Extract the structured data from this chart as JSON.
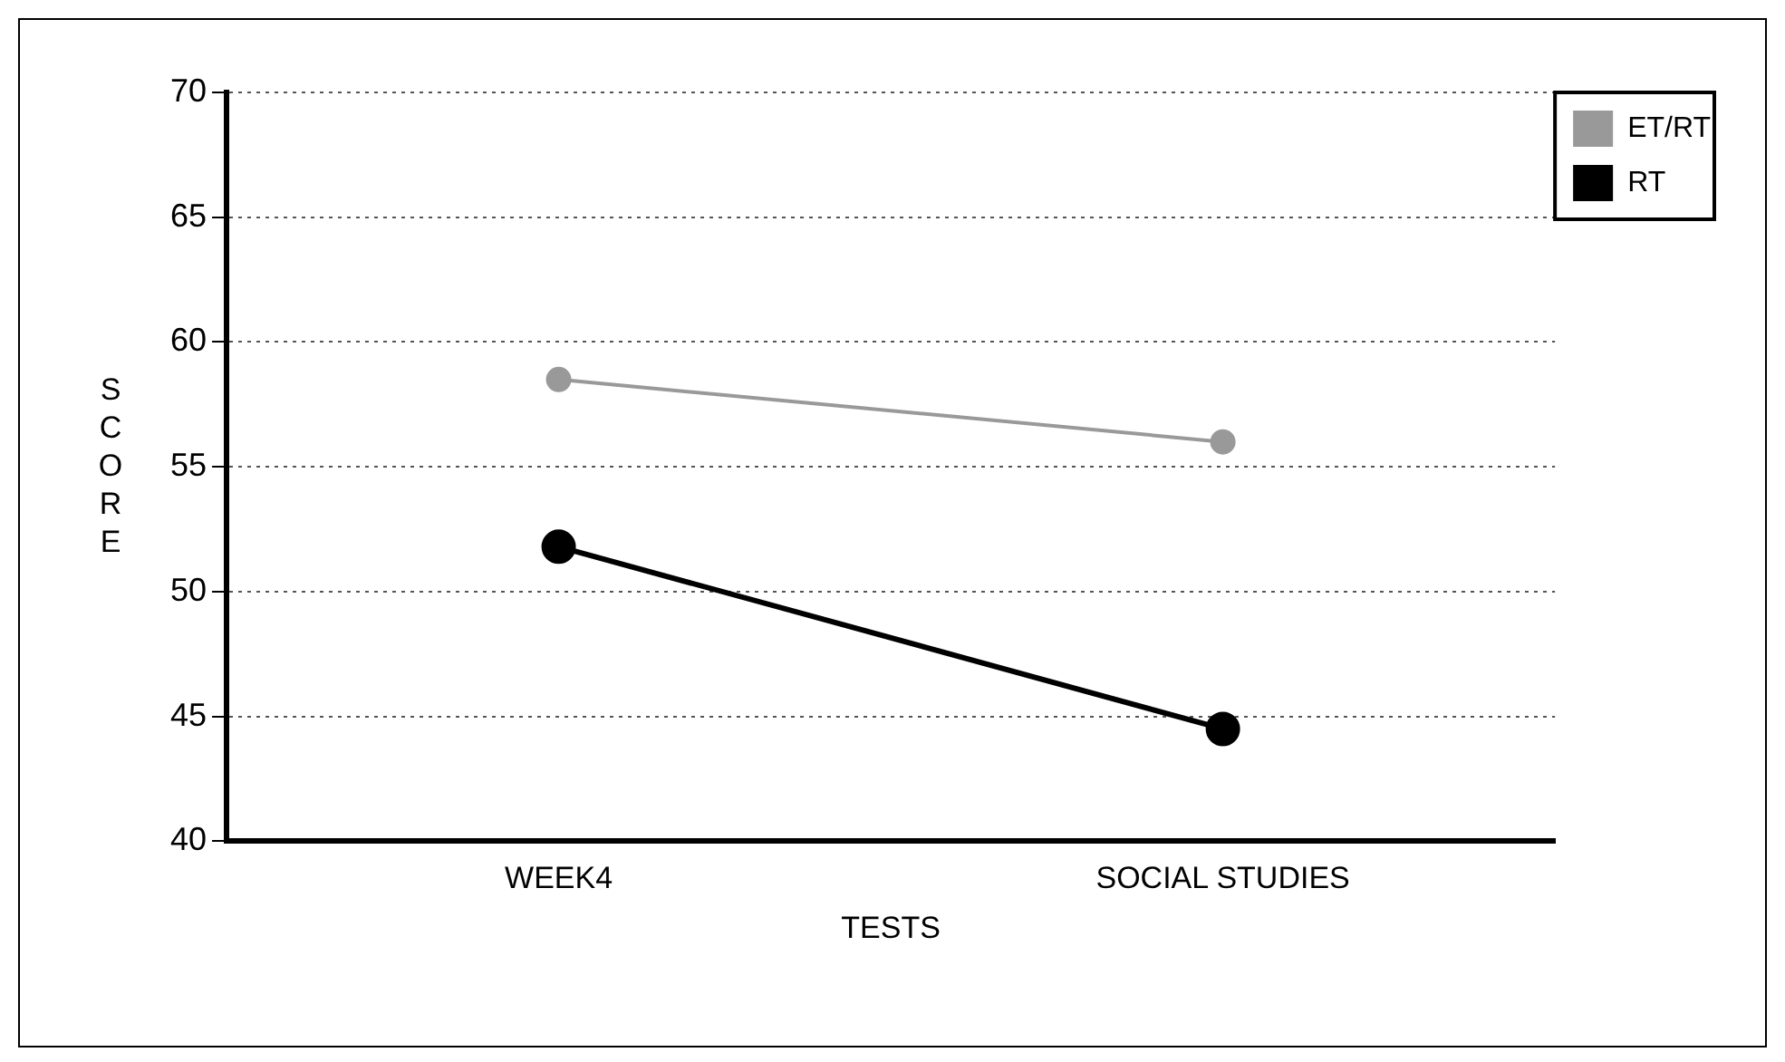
{
  "chart_data": {
    "type": "line",
    "xlabel": "TESTS",
    "ylabel": "SCORE",
    "categories": [
      "WEEK4",
      "SOCIAL STUDIES"
    ],
    "series": [
      {
        "name": "ET/RT",
        "color": "#999999",
        "values": [
          58.5,
          56.0
        ]
      },
      {
        "name": "RT",
        "color": "#000000",
        "values": [
          51.8,
          44.5
        ]
      }
    ],
    "ylim": [
      40,
      70
    ],
    "yticks": [
      40,
      45,
      50,
      55,
      60,
      65,
      70
    ],
    "grid": "y",
    "legend": "top right",
    "marker": "circle",
    "line_style": "solid"
  }
}
